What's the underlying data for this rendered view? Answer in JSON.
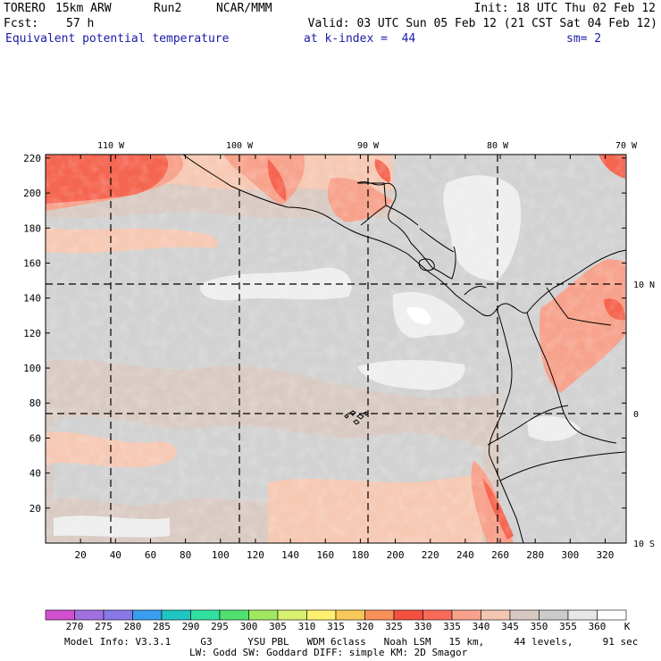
{
  "header": {
    "model": "TORERO",
    "resolution": "15km ARW",
    "run": "Run2",
    "org": "NCAR/MMM",
    "init": "Init: 18 UTC Thu 02 Feb 12",
    "fcst_label": "Fcst:",
    "fcst_value": "57 h",
    "valid": "Valid: 03 UTC Sun 05 Feb 12 (21 CST Sat 04 Feb 12)",
    "field": "Equivalent potential temperature",
    "level": "at k-index =  44",
    "smoothing": "sm= 2"
  },
  "map": {
    "lon_labels": [
      "110 W",
      "100 W",
      "90 W",
      "80 W",
      "70 W"
    ],
    "lat_labels": [
      "10 N",
      "0",
      "10 S"
    ],
    "y_ticks": [
      "220",
      "200",
      "180",
      "160",
      "140",
      "120",
      "100",
      "80",
      "60",
      "40",
      "20"
    ],
    "x_ticks": [
      "20",
      "40",
      "60",
      "80",
      "100",
      "120",
      "140",
      "160",
      "180",
      "200",
      "220",
      "240",
      "260",
      "280",
      "300",
      "320"
    ],
    "colors": {
      "grey_light": "#eeeeee",
      "grey": "#d2d2d2",
      "taupe": "#d9cbc3",
      "peach": "#f6c9b4",
      "salmon": "#f7a28c",
      "red": "#f56651"
    }
  },
  "legend": {
    "labels": [
      "270",
      "275",
      "280",
      "285",
      "290",
      "295",
      "300",
      "305",
      "310",
      "315",
      "320",
      "325",
      "330",
      "335",
      "340",
      "345",
      "350",
      "355",
      "360"
    ],
    "unit": "K",
    "colors": [
      "#d050d0",
      "#a070e0",
      "#8878e8",
      "#3a9ef0",
      "#20c4c0",
      "#30e0a0",
      "#50e070",
      "#a0e860",
      "#d8f070",
      "#fff070",
      "#f8c858",
      "#f89058",
      "#f45040",
      "#f86a58",
      "#f7a28c",
      "#f5c6b2",
      "#d7c9c1",
      "#cbcbcb",
      "#e6e6e6",
      "#ffffff"
    ]
  },
  "footer": {
    "line1": "Model Info: V3.3.1     G3      YSU PBL   WDM 6class   Noah LSM   15 km,     44 levels,     91 sec",
    "line2": "LW: Godd SW: Goddard DIFF: simple KM: 2D Smagor"
  }
}
